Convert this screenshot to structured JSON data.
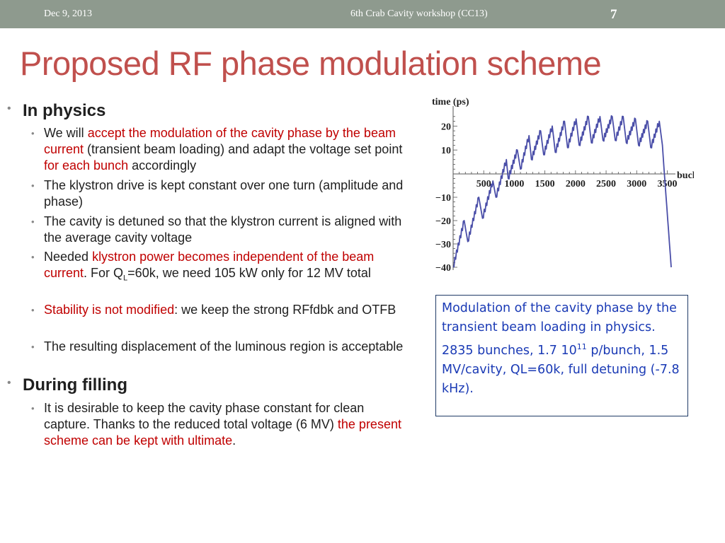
{
  "header": {
    "date": "Dec 9, 2013",
    "conference": "6th Crab Cavity workshop (CC13)",
    "slide_number": "7"
  },
  "slide": {
    "title": "Proposed RF phase modulation scheme"
  },
  "bullets": {
    "in_physics": {
      "heading": "In physics",
      "b1": {
        "t1": "We will ",
        "r1": "accept the modulation of the cavity phase by the beam current",
        "t2": " (transient beam loading) and adapt the voltage set point ",
        "r2": "for each bunch",
        "t3": " accordingly"
      },
      "b2": {
        "text": "The klystron drive is kept constant over one turn (amplitude and phase)"
      },
      "b3": {
        "text": "The cavity is detuned so that the klystron current is aligned with the average cavity voltage"
      },
      "b4": {
        "t1": "Needed ",
        "r1": "klystron power becomes independent of the beam current",
        "t2": ". For Q",
        "sub": "L",
        "t3": "=60k, we need 105 kW only for 12 MV total"
      },
      "b5": {
        "r1": "Stability is not modified",
        "t1": ": we keep the strong RFfdbk and OTFB"
      },
      "b6": {
        "text": "The resulting displacement of the luminous region is acceptable"
      }
    },
    "during_filling": {
      "heading": "During filling",
      "b1": {
        "t1": "It is desirable to keep the cavity phase constant for clean capture. Thanks to the reduced total voltage (6 MV) ",
        "r1": "the present scheme can be kept with ultimate",
        "t2": "."
      }
    }
  },
  "caption": {
    "t1": "Modulation of the cavity phase by the transient beam loading in physics. 2835 bunches, 1.7 10",
    "sup": "11",
    "t2": " p/bunch, 1.5 MV/cavity, QL=60k, full detuning (-7.8 kHz)."
  },
  "chart_data": {
    "type": "line",
    "ylabel": "time (ps)",
    "xlabel": "bucket",
    "xlim": [
      0,
      3564
    ],
    "ylim": [
      -40,
      26
    ],
    "x_ticks": [
      500,
      1000,
      1500,
      2000,
      2500,
      3000,
      3500
    ],
    "y_ticks": [
      -40,
      -30,
      -20,
      -10,
      10,
      20
    ],
    "line_color": "#4a4ea8",
    "series": [
      {
        "x": [
          0,
          180,
          240,
          420,
          480,
          650,
          700,
          870,
          900,
          1050,
          1100,
          1240,
          1280,
          1430,
          1480,
          1620,
          1670,
          1820,
          1870,
          2010,
          2060,
          2210,
          2260,
          2400,
          2450,
          2600,
          2650,
          2780,
          2830,
          2980,
          3030,
          3180,
          3230,
          3370,
          3420,
          3564
        ],
        "y": [
          -40,
          -20,
          -29,
          -10,
          -19,
          -3,
          -10,
          6,
          -2,
          10,
          2,
          16,
          6,
          18,
          8,
          20,
          9,
          22,
          11,
          23,
          12,
          24,
          13,
          24,
          14,
          24,
          14,
          24,
          13,
          23,
          12,
          22,
          11,
          22,
          12,
          -40
        ]
      }
    ]
  }
}
